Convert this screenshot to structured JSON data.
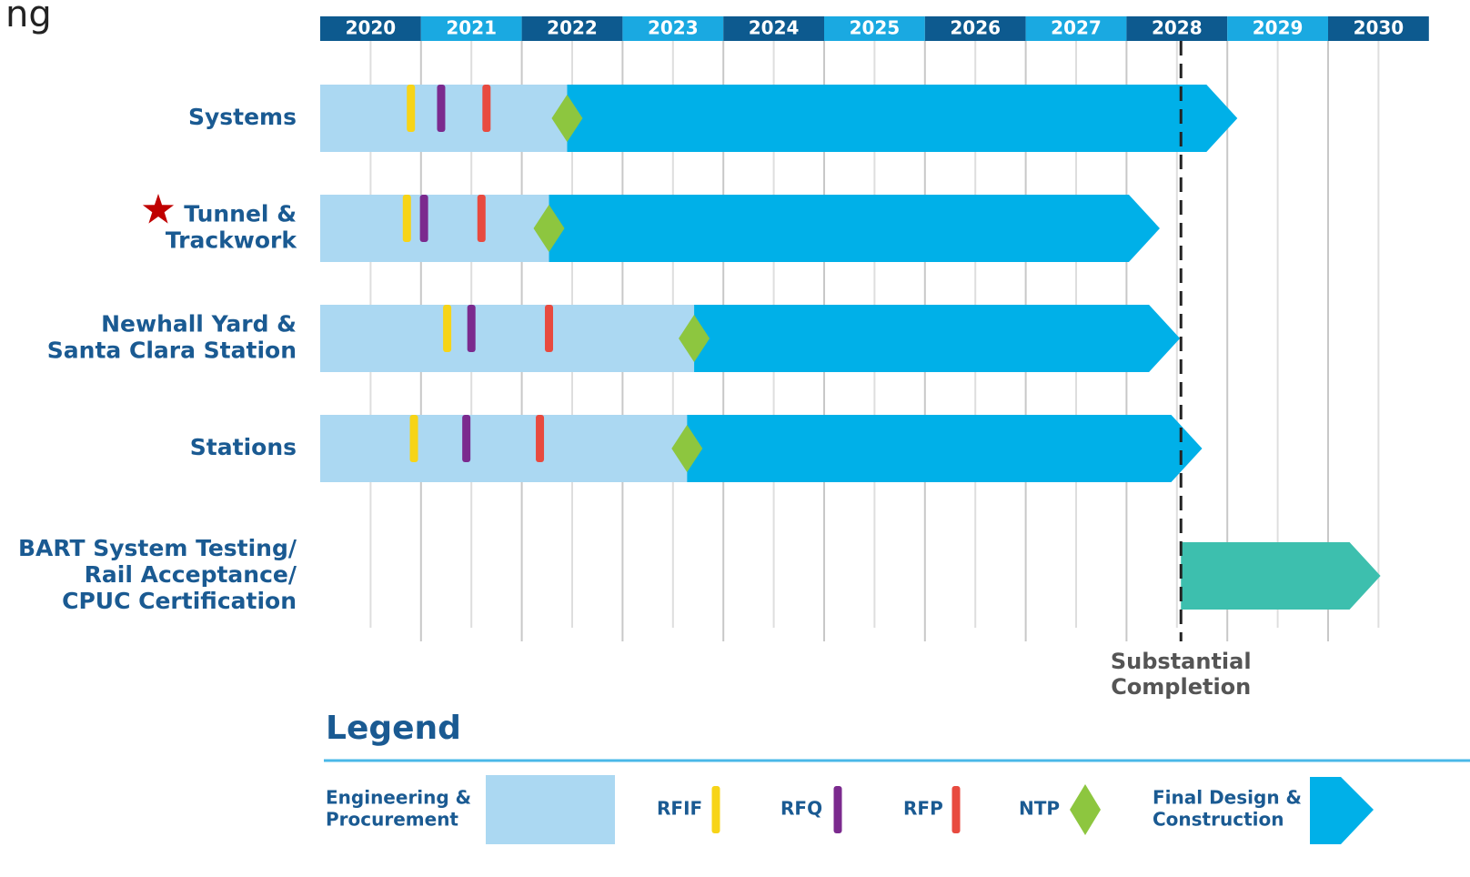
{
  "chart_data": {
    "type": "gantt",
    "corner_text": "ng",
    "xlim": [
      2020,
      2031
    ],
    "xticks": [
      2020,
      2021,
      2022,
      2023,
      2024,
      2025,
      2026,
      2027,
      2028,
      2029,
      2030
    ],
    "header_colors": [
      "#0d5a8f",
      "#1aa9e1"
    ],
    "grid": true,
    "rows": [
      {
        "label": [
          "Systems"
        ],
        "start": 2020,
        "rfif": 2020.9,
        "rfq": 2021.2,
        "rfp": 2021.65,
        "ntp": 2022.45,
        "end": 2029.1
      },
      {
        "label": [
          "Tunnel &",
          "Trackwork"
        ],
        "starred": true,
        "start": 2020,
        "rfif": 2020.86,
        "rfq": 2021.03,
        "rfp": 2021.6,
        "ntp": 2022.27,
        "end": 2028.33
      },
      {
        "label": [
          "Newhall Yard &",
          "Santa Clara Station"
        ],
        "start": 2020,
        "rfif": 2021.26,
        "rfq": 2021.5,
        "rfp": 2022.27,
        "ntp": 2023.71,
        "end": 2028.53
      },
      {
        "label": [
          "Stations"
        ],
        "start": 2020,
        "rfif": 2020.93,
        "rfq": 2021.45,
        "rfp": 2022.18,
        "ntp": 2023.64,
        "end": 2028.75
      },
      {
        "label": [
          "BART System Testing/",
          "Rail Acceptance/",
          "CPUC Certification"
        ],
        "start": 2028.54,
        "end": 2030.52,
        "color": "#3dbfae"
      }
    ],
    "completion": {
      "value": 2028.54,
      "label": [
        "Substantial",
        "Completion"
      ]
    },
    "legend": {
      "title": "Legend",
      "items": [
        {
          "label": [
            "Engineering &",
            "Procurement"
          ],
          "color": "#abd8f2"
        },
        {
          "label": [
            "RFIF"
          ],
          "color": "#f7d417"
        },
        {
          "label": [
            "RFQ"
          ],
          "color": "#7b2a8e"
        },
        {
          "label": [
            "RFP"
          ],
          "color": "#e84a3f"
        },
        {
          "label": [
            "NTP"
          ],
          "color": "#8dc63f"
        },
        {
          "label": [
            "Final Design &",
            "Construction"
          ],
          "color": "#00b0e8"
        }
      ]
    }
  }
}
